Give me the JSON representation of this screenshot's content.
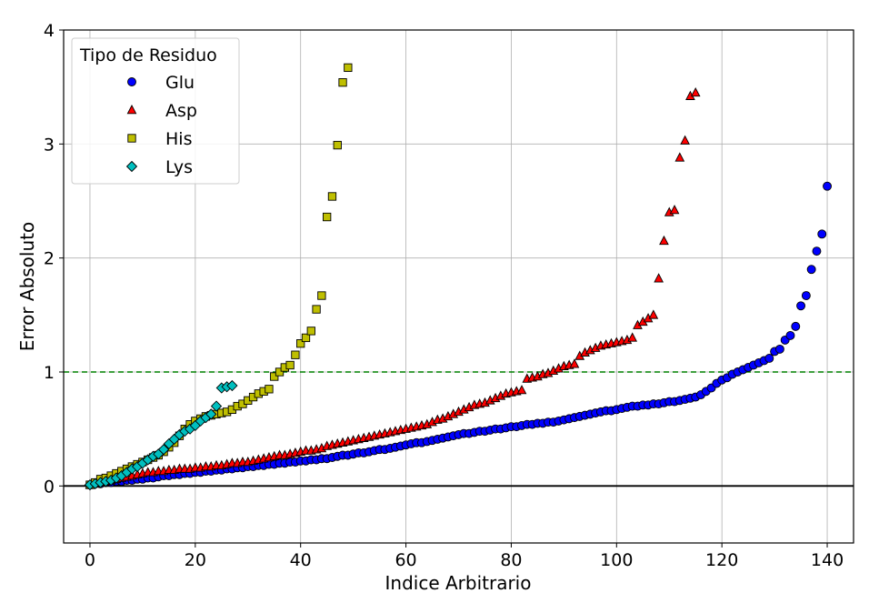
{
  "chart_data": {
    "type": "scatter",
    "xlabel": "Indice Arbitrario",
    "ylabel": "Error Absoluto",
    "xlim": [
      -5,
      145
    ],
    "ylim": [
      -0.5,
      4
    ],
    "xticks": [
      0,
      20,
      40,
      60,
      80,
      100,
      120,
      140
    ],
    "yticks": [
      0,
      1,
      2,
      3,
      4
    ],
    "grid": true,
    "threshold_line": {
      "y": 1,
      "color": "#008000",
      "style": "dashed"
    },
    "zero_line": {
      "y": 0,
      "color": "#000000"
    },
    "legend": {
      "title": "Tipo de Residuo",
      "position": "top-left"
    },
    "series": [
      {
        "name": "Glu",
        "marker": "circle",
        "color": "#0000ff",
        "x": [
          0,
          1,
          2,
          3,
          4,
          5,
          6,
          7,
          8,
          9,
          10,
          11,
          12,
          13,
          14,
          15,
          16,
          17,
          18,
          19,
          20,
          21,
          22,
          23,
          24,
          25,
          26,
          27,
          28,
          29,
          30,
          31,
          32,
          33,
          34,
          35,
          36,
          37,
          38,
          39,
          40,
          41,
          42,
          43,
          44,
          45,
          46,
          47,
          48,
          49,
          50,
          51,
          52,
          53,
          54,
          55,
          56,
          57,
          58,
          59,
          60,
          61,
          62,
          63,
          64,
          65,
          66,
          67,
          68,
          69,
          70,
          71,
          72,
          73,
          74,
          75,
          76,
          77,
          78,
          79,
          80,
          81,
          82,
          83,
          84,
          85,
          86,
          87,
          88,
          89,
          90,
          91,
          92,
          93,
          94,
          95,
          96,
          97,
          98,
          99,
          100,
          101,
          102,
          103,
          104,
          105,
          106,
          107,
          108,
          109,
          110,
          111,
          112,
          113,
          114,
          115,
          116,
          117,
          118,
          119,
          120,
          121,
          122,
          123,
          124,
          125,
          126,
          127,
          128,
          129,
          130,
          131,
          132,
          133,
          134,
          135,
          136,
          137,
          138,
          139,
          140
        ],
        "y": [
          0.01,
          0.02,
          0.02,
          0.03,
          0.03,
          0.04,
          0.04,
          0.05,
          0.05,
          0.06,
          0.06,
          0.07,
          0.07,
          0.08,
          0.09,
          0.09,
          0.1,
          0.1,
          0.11,
          0.11,
          0.12,
          0.12,
          0.13,
          0.13,
          0.14,
          0.14,
          0.15,
          0.15,
          0.16,
          0.16,
          0.17,
          0.17,
          0.18,
          0.18,
          0.19,
          0.19,
          0.2,
          0.2,
          0.21,
          0.21,
          0.22,
          0.22,
          0.23,
          0.23,
          0.24,
          0.24,
          0.25,
          0.26,
          0.27,
          0.27,
          0.28,
          0.29,
          0.29,
          0.3,
          0.31,
          0.32,
          0.32,
          0.33,
          0.34,
          0.35,
          0.36,
          0.37,
          0.38,
          0.38,
          0.39,
          0.4,
          0.41,
          0.42,
          0.43,
          0.44,
          0.45,
          0.46,
          0.46,
          0.47,
          0.48,
          0.48,
          0.49,
          0.5,
          0.5,
          0.51,
          0.52,
          0.52,
          0.53,
          0.54,
          0.54,
          0.55,
          0.55,
          0.56,
          0.56,
          0.57,
          0.58,
          0.59,
          0.6,
          0.61,
          0.62,
          0.63,
          0.64,
          0.65,
          0.66,
          0.66,
          0.67,
          0.68,
          0.69,
          0.7,
          0.7,
          0.71,
          0.71,
          0.72,
          0.72,
          0.73,
          0.74,
          0.74,
          0.75,
          0.76,
          0.77,
          0.78,
          0.8,
          0.83,
          0.86,
          0.9,
          0.93,
          0.95,
          0.98,
          1.0,
          1.02,
          1.04,
          1.06,
          1.08,
          1.1,
          1.12,
          1.18,
          1.2,
          1.28,
          1.32,
          1.4,
          1.58,
          1.67,
          1.9,
          2.06,
          2.21,
          2.63
        ]
      },
      {
        "name": "Asp",
        "marker": "triangle",
        "color": "#ff0000",
        "x": [
          0,
          1,
          2,
          3,
          4,
          5,
          6,
          7,
          8,
          9,
          10,
          11,
          12,
          13,
          14,
          15,
          16,
          17,
          18,
          19,
          20,
          21,
          22,
          23,
          24,
          25,
          26,
          27,
          28,
          29,
          30,
          31,
          32,
          33,
          34,
          35,
          36,
          37,
          38,
          39,
          40,
          41,
          42,
          43,
          44,
          45,
          46,
          47,
          48,
          49,
          50,
          51,
          52,
          53,
          54,
          55,
          56,
          57,
          58,
          59,
          60,
          61,
          62,
          63,
          64,
          65,
          66,
          67,
          68,
          69,
          70,
          71,
          72,
          73,
          74,
          75,
          76,
          77,
          78,
          79,
          80,
          81,
          82,
          83,
          84,
          85,
          86,
          87,
          88,
          89,
          90,
          91,
          92,
          93,
          94,
          95,
          96,
          97,
          98,
          99,
          100,
          101,
          102,
          103,
          104,
          105,
          106,
          107,
          108,
          109,
          110,
          111,
          112,
          113,
          114,
          115
        ],
        "y": [
          0.01,
          0.02,
          0.03,
          0.04,
          0.05,
          0.06,
          0.07,
          0.08,
          0.09,
          0.1,
          0.11,
          0.12,
          0.12,
          0.13,
          0.13,
          0.14,
          0.14,
          0.15,
          0.15,
          0.15,
          0.16,
          0.16,
          0.17,
          0.17,
          0.18,
          0.18,
          0.19,
          0.2,
          0.2,
          0.21,
          0.21,
          0.22,
          0.23,
          0.24,
          0.25,
          0.26,
          0.27,
          0.27,
          0.28,
          0.29,
          0.3,
          0.31,
          0.31,
          0.32,
          0.33,
          0.35,
          0.36,
          0.37,
          0.38,
          0.39,
          0.4,
          0.41,
          0.42,
          0.43,
          0.44,
          0.45,
          0.46,
          0.47,
          0.48,
          0.49,
          0.5,
          0.51,
          0.52,
          0.53,
          0.54,
          0.56,
          0.58,
          0.59,
          0.61,
          0.63,
          0.65,
          0.67,
          0.69,
          0.71,
          0.72,
          0.73,
          0.75,
          0.77,
          0.79,
          0.81,
          0.82,
          0.83,
          0.84,
          0.94,
          0.95,
          0.96,
          0.98,
          0.99,
          1.01,
          1.03,
          1.05,
          1.06,
          1.07,
          1.14,
          1.17,
          1.19,
          1.21,
          1.23,
          1.24,
          1.25,
          1.26,
          1.27,
          1.28,
          1.3,
          1.41,
          1.44,
          1.47,
          1.5,
          1.82,
          2.15,
          2.4,
          2.42,
          2.88,
          3.03,
          3.42,
          3.45
        ]
      },
      {
        "name": "His",
        "marker": "square",
        "color": "#bfbf00",
        "x": [
          0,
          1,
          2,
          3,
          4,
          5,
          6,
          7,
          8,
          9,
          10,
          11,
          12,
          13,
          14,
          15,
          16,
          17,
          18,
          19,
          20,
          21,
          22,
          23,
          24,
          25,
          26,
          27,
          28,
          29,
          30,
          31,
          32,
          33,
          34,
          35,
          36,
          37,
          38,
          39,
          40,
          41,
          42,
          43,
          44,
          45,
          46,
          47,
          48,
          49
        ],
        "y": [
          0.01,
          0.03,
          0.06,
          0.07,
          0.09,
          0.11,
          0.13,
          0.15,
          0.17,
          0.19,
          0.21,
          0.23,
          0.25,
          0.27,
          0.3,
          0.34,
          0.38,
          0.44,
          0.5,
          0.54,
          0.57,
          0.59,
          0.61,
          0.62,
          0.63,
          0.64,
          0.65,
          0.67,
          0.7,
          0.72,
          0.75,
          0.78,
          0.81,
          0.83,
          0.85,
          0.96,
          1.0,
          1.04,
          1.06,
          1.15,
          1.25,
          1.3,
          1.36,
          1.55,
          1.67,
          2.36,
          2.54,
          2.99,
          3.54,
          3.67
        ]
      },
      {
        "name": "Lys",
        "marker": "diamond",
        "color": "#00bfbf",
        "x": [
          0,
          1,
          2,
          3,
          4,
          5,
          6,
          7,
          8,
          9,
          10,
          11,
          12,
          13,
          14,
          15,
          16,
          17,
          18,
          19,
          20,
          21,
          22,
          23,
          24,
          25,
          26,
          27
        ],
        "y": [
          0.01,
          0.02,
          0.03,
          0.04,
          0.05,
          0.07,
          0.09,
          0.12,
          0.15,
          0.17,
          0.2,
          0.23,
          0.26,
          0.28,
          0.32,
          0.37,
          0.41,
          0.45,
          0.48,
          0.5,
          0.53,
          0.57,
          0.6,
          0.63,
          0.7,
          0.86,
          0.87,
          0.88
        ]
      }
    ]
  }
}
